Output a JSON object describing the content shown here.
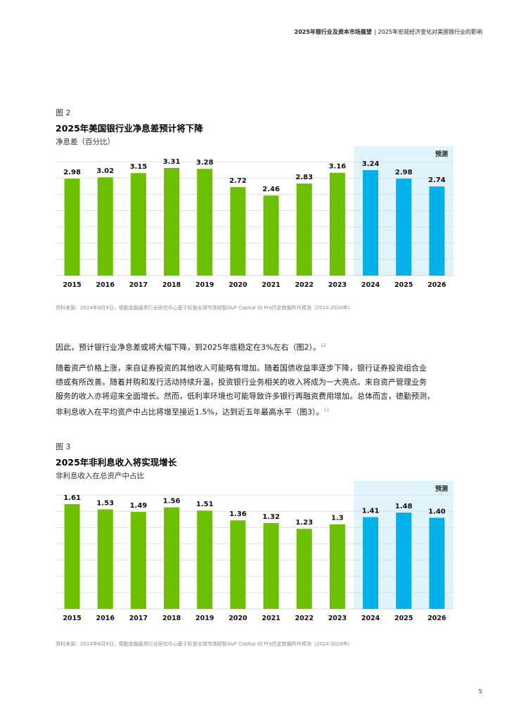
{
  "header": {
    "report": "2025年银行业及资本市场展望",
    "separator": "|",
    "section": "2025年宏观经济变化对美国银行业的影响"
  },
  "figure2": {
    "label": "图 2",
    "title": "2025年美国银行业净息差预计将下降",
    "subtitle": "净息差（百分比）",
    "forecast_label": "预测",
    "source": "资料来源：2024年8月9日，德勤金融服务行业研究中心基于标普全球市场财智S&P Capital IQ Pro历史数据所作预测（2024-2026年）"
  },
  "paragraph1": {
    "text": "因此，预计银行业净息差或将大幅下降，到2025年底稳定在3%左右（图2）。",
    "footnote": "12"
  },
  "paragraph2": {
    "line1": "随着资产价格上涨，来自证券投资的其他收入可能略有增加。随着国债收益率逐步下降，银行证券投资组合业",
    "line2": "绩或有所改善。随着并购和发行活动持续升温，投资银行业务相关的收入将成为一大亮点。来自资产管理业务",
    "line3": "服务的收入亦将迎来全面增长。然而，低利率环境也可能导致许多银行再融资费用增加。总体而言，德勤预测，",
    "line4": "非利息收入在平均资产中占比将增至接近1.5%，达到近五年最高水平（图3）。",
    "footnote": "13"
  },
  "figure3": {
    "label": "图 3",
    "title": "2025年非利息收入将实现增长",
    "subtitle": "非利息收入在总资产中占比",
    "forecast_label": "预测",
    "source": "资料来源：2024年8月9日，德勤金融服务行业研究中心基于标普全球市场财智S&P Capital IQ Pro历史数据所作预测（2024-2026年）"
  },
  "page_number": "5",
  "colors": {
    "historical_bar": "#6cc000",
    "forecast_bar": "#00b0e8",
    "forecast_band": "#e2f4fb",
    "gridline": "#d4d4d4"
  },
  "chart_data": [
    {
      "type": "bar",
      "title": "2025年美国银行业净息差预计将下降",
      "ylabel": "净息差（百分比）",
      "categories": [
        "2015",
        "2016",
        "2017",
        "2018",
        "2019",
        "2020",
        "2021",
        "2022",
        "2023",
        "2024",
        "2025",
        "2026"
      ],
      "values": [
        2.98,
        3.02,
        3.15,
        3.31,
        3.28,
        2.72,
        2.46,
        2.83,
        3.16,
        3.24,
        2.98,
        2.74
      ],
      "value_labels": [
        "2.98",
        "3.02",
        "3.15",
        "3.31",
        "3.28",
        "2.72",
        "2.46",
        "2.83",
        "3.16",
        "3.24",
        "2.98",
        "2.74"
      ],
      "forecast_from_index": 9,
      "ylim": [
        0,
        3.5
      ],
      "grid": true
    },
    {
      "type": "bar",
      "title": "2025年非利息收入将实现增长",
      "ylabel": "非利息收入在总资产中占比",
      "categories": [
        "2015",
        "2016",
        "2017",
        "2018",
        "2019",
        "2020",
        "2021",
        "2022",
        "2023",
        "2024",
        "2025",
        "2026"
      ],
      "values": [
        1.61,
        1.53,
        1.49,
        1.56,
        1.51,
        1.36,
        1.32,
        1.23,
        1.3,
        1.41,
        1.48,
        1.4
      ],
      "value_labels": [
        "1.61",
        "1.53",
        "1.49",
        "1.56",
        "1.51",
        "1.36",
        "1.32",
        "1.23",
        "1.3",
        "1.41",
        "1.48",
        "1.40"
      ],
      "forecast_from_index": 9,
      "ylim": [
        0,
        1.75
      ],
      "grid": true
    }
  ]
}
